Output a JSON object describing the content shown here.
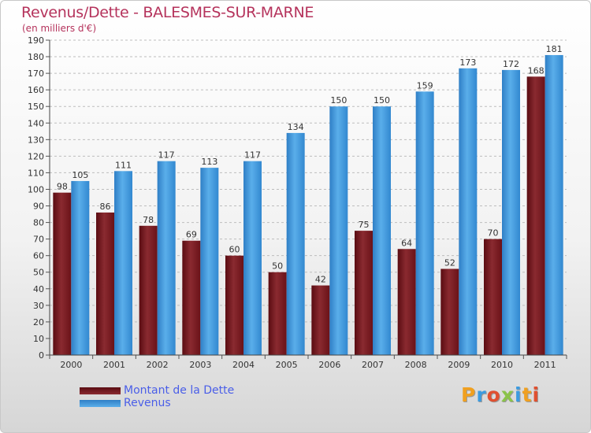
{
  "title": "Revenus/Dette - BALESMES-SUR-MARNE",
  "subtitle": "(en milliers d'€)",
  "colors": {
    "dette": "#7a1a22",
    "revenus": "#3f97dd",
    "title": "#b5335c",
    "legend_text": "#4a5ee8"
  },
  "chart_data": {
    "type": "bar",
    "categories": [
      "2000",
      "2001",
      "2002",
      "2003",
      "2004",
      "2005",
      "2006",
      "2007",
      "2008",
      "2009",
      "2010",
      "2011"
    ],
    "series": [
      {
        "name": "Montant de la Dette",
        "values": [
          98,
          86,
          78,
          69,
          60,
          50,
          42,
          75,
          64,
          52,
          70,
          168
        ]
      },
      {
        "name": "Revenus",
        "values": [
          105,
          111,
          117,
          113,
          117,
          134,
          150,
          150,
          159,
          173,
          172,
          181
        ]
      }
    ],
    "ylim": [
      0,
      190
    ],
    "yticks": [
      0,
      10,
      20,
      30,
      40,
      50,
      60,
      70,
      80,
      90,
      100,
      110,
      120,
      130,
      140,
      150,
      160,
      170,
      180,
      190
    ],
    "grid": true,
    "legend_position": "bottom-left"
  },
  "legend": [
    {
      "label": "Montant de la Dette"
    },
    {
      "label": "Revenus"
    }
  ],
  "logo": {
    "letters": [
      "P",
      "r",
      "o",
      "x",
      "i",
      "t",
      "i"
    ],
    "colors": [
      "#f0a020",
      "#3b9be0",
      "#e05030",
      "#8bc34a",
      "#3b9be0",
      "#f0a020",
      "#e05030"
    ]
  }
}
